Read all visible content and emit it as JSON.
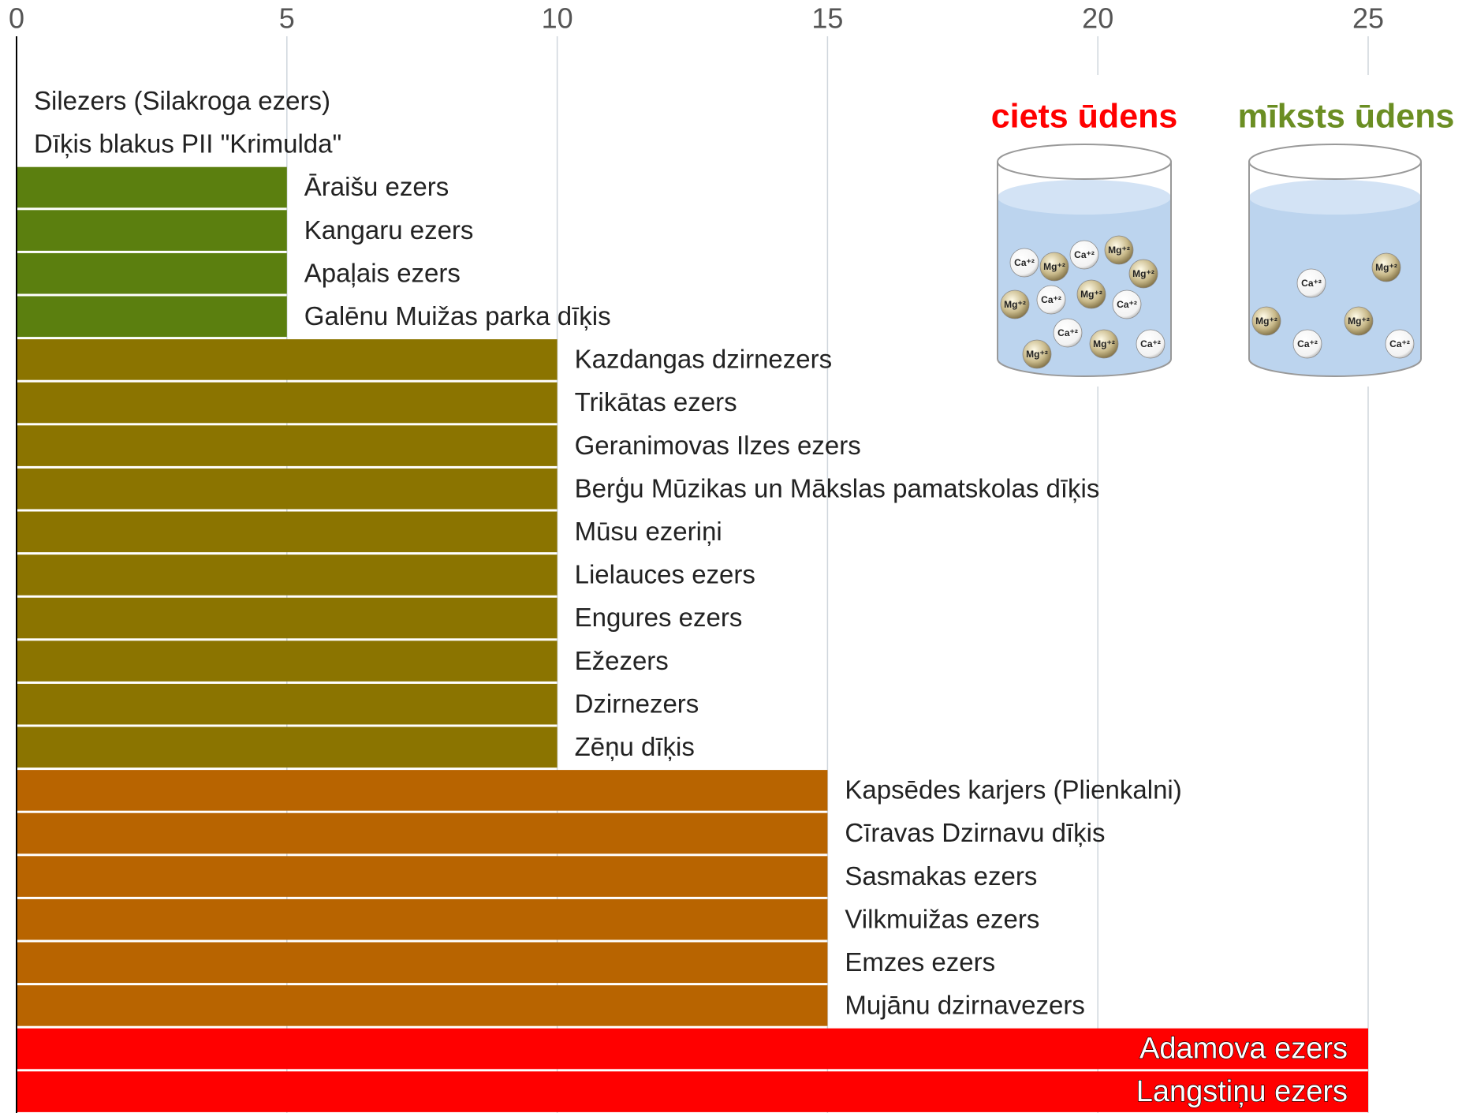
{
  "chart_data": {
    "type": "bar",
    "orientation": "horizontal",
    "categories": [
      "Silezers (Silakroga ezers)",
      "Dīķis blakus PII \"Krimulda\"",
      "Āraišu ezers",
      "Kangaru ezers",
      "Apaļais ezers",
      "Galēnu Muižas parka dīķis",
      "Kazdangas dzirnezers",
      "Trikātas ezers",
      "Geranimovas Ilzes ezers",
      "Berģu Mūzikas un Mākslas pamatskolas dīķis",
      "Mūsu ezeriņi",
      "Lielauces ezers",
      "Engures ezers",
      "Ežezers",
      "Dzirnezers",
      "Zēņu dīķis",
      "Kapsēdes karjers (Plienkalni)",
      "Cīravas Dzirnavu dīķis",
      "Sasmakas ezers",
      "Vilkmuižas ezers",
      "Emzes ezers",
      "Mujānu dzirnavezers",
      "Adamova ezers",
      "Langstiņu ezers"
    ],
    "values": [
      0,
      0,
      5,
      5,
      5,
      5,
      10,
      10,
      10,
      10,
      10,
      10,
      10,
      10,
      10,
      10,
      15,
      15,
      15,
      15,
      15,
      15,
      25,
      25
    ],
    "colors": [
      "#5b7f0f",
      "#5b7f0f",
      "#5b7f0f",
      "#5b7f0f",
      "#5b7f0f",
      "#5b7f0f",
      "#8b7400",
      "#8b7400",
      "#8b7400",
      "#8b7400",
      "#8b7400",
      "#8b7400",
      "#8b7400",
      "#8b7400",
      "#8b7400",
      "#8b7400",
      "#b86400",
      "#b86400",
      "#b86400",
      "#b86400",
      "#b86400",
      "#b86400",
      "#ff0000",
      "#ff0000"
    ],
    "xlim": [
      0,
      25
    ],
    "xticks": [
      0,
      5,
      10,
      15,
      20,
      25
    ],
    "grid": true
  },
  "illustration": {
    "beakers": [
      {
        "title": "ciets ūdens",
        "color": "#ff0000",
        "ions": [
          "Ca⁺²",
          "Mg⁺²",
          "Ca⁺²",
          "Mg⁺²",
          "Mg⁺²",
          "Mg⁺²",
          "Ca⁺²",
          "Mg⁺²",
          "Ca⁺²",
          "Ca⁺²",
          "Mg⁺²",
          "Ca⁺²",
          "Mg⁺²"
        ]
      },
      {
        "title": "mīksts ūdens",
        "color": "#6b8e23",
        "ions": [
          "Ca⁺²",
          "Mg⁺²",
          "Mg⁺²",
          "Mg⁺²",
          "Ca⁺²",
          "Ca⁺²"
        ]
      }
    ]
  }
}
